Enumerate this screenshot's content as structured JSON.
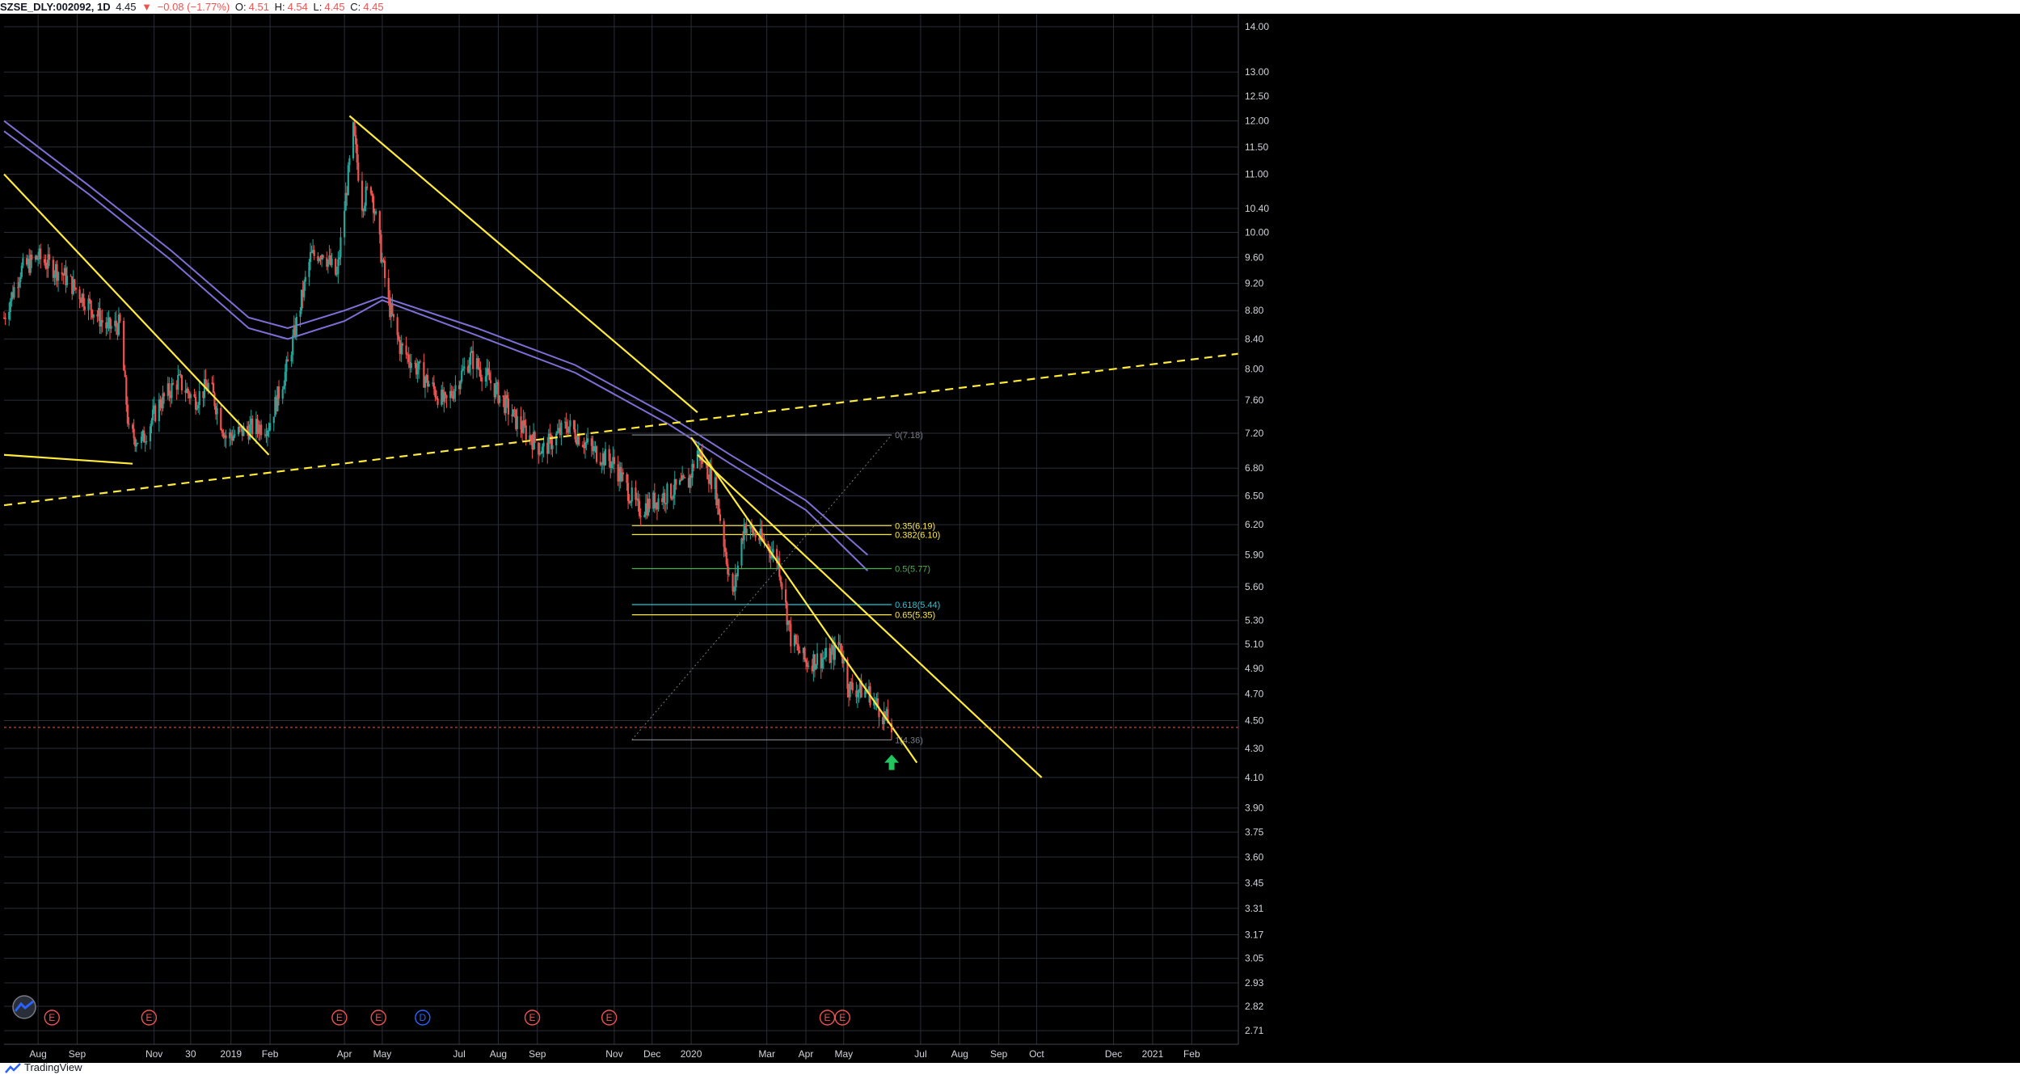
{
  "header": {
    "symbol": "SZSE_DLY:002092, 1D",
    "last": "4.45",
    "arrow": "▼",
    "change": "−0.08 (−1.77%)",
    "open_label": "O:",
    "open": "4.51",
    "high_label": "H:",
    "high": "4.54",
    "low_label": "L:",
    "low": "4.45",
    "close_label": "C:",
    "close": "4.45"
  },
  "footer": {
    "brand": "TradingView"
  },
  "colors": {
    "background": "#000000",
    "grid": "#2a2e39",
    "axis_text": "#d1d4dc",
    "candle_up": "#26a69a",
    "candle_down": "#ef5350",
    "trendline": "#ffeb3b",
    "moving_average": "#7e6fd6",
    "price_line": "#ff3b30",
    "arrow": "#22c55e",
    "earnings": "#ef5350",
    "dividend": "#2962ff"
  },
  "chart_data": {
    "type": "candlestick",
    "symbol": "SZSE_DLY:002092",
    "interval": "1D",
    "y_scale": "log",
    "ylim": [
      2.65,
      14.3
    ],
    "y_ticks": [
      "14.00",
      "13.00",
      "12.50",
      "12.00",
      "11.50",
      "11.00",
      "10.40",
      "10.00",
      "9.60",
      "9.20",
      "8.80",
      "8.40",
      "8.00",
      "7.60",
      "7.20",
      "6.80",
      "6.50",
      "6.20",
      "5.90",
      "5.60",
      "5.30",
      "5.10",
      "4.90",
      "4.70",
      "4.50",
      "4.30",
      "4.10",
      "3.90",
      "3.75",
      "3.60",
      "3.45",
      "3.31",
      "3.17",
      "3.05",
      "2.93",
      "2.82",
      "2.71"
    ],
    "x_range": [
      "2018-07-05",
      "2021-03-10"
    ],
    "x_ticks": [
      {
        "label": "Aug",
        "date": "2018-08-01"
      },
      {
        "label": "Sep",
        "date": "2018-09-01"
      },
      {
        "label": "Nov",
        "date": "2018-11-01"
      },
      {
        "label": "30",
        "date": "2018-11-30"
      },
      {
        "label": "2019",
        "date": "2019-01-01"
      },
      {
        "label": "Feb",
        "date": "2019-02-01"
      },
      {
        "label": "Apr",
        "date": "2019-04-01"
      },
      {
        "label": "May",
        "date": "2019-05-01"
      },
      {
        "label": "Jul",
        "date": "2019-07-01"
      },
      {
        "label": "Aug",
        "date": "2019-08-01"
      },
      {
        "label": "Sep",
        "date": "2019-09-01"
      },
      {
        "label": "Nov",
        "date": "2019-11-01"
      },
      {
        "label": "Dec",
        "date": "2019-12-01"
      },
      {
        "label": "2020",
        "date": "2020-01-01"
      },
      {
        "label": "Mar",
        "date": "2020-03-01"
      },
      {
        "label": "Apr",
        "date": "2020-04-01"
      },
      {
        "label": "May",
        "date": "2020-05-01"
      },
      {
        "label": "Jul",
        "date": "2020-07-01"
      },
      {
        "label": "Aug",
        "date": "2020-08-01"
      },
      {
        "label": "Sep",
        "date": "2020-09-01"
      },
      {
        "label": "Oct",
        "date": "2020-10-01"
      },
      {
        "label": "Dec",
        "date": "2020-12-01"
      },
      {
        "label": "2021",
        "date": "2021-01-01"
      },
      {
        "label": "Feb",
        "date": "2021-02-01"
      }
    ],
    "close_path": [
      {
        "date": "2018-07-05",
        "price": 8.7
      },
      {
        "date": "2018-07-18",
        "price": 9.4
      },
      {
        "date": "2018-08-01",
        "price": 9.6
      },
      {
        "date": "2018-08-20",
        "price": 9.35
      },
      {
        "date": "2018-09-10",
        "price": 8.9
      },
      {
        "date": "2018-09-25",
        "price": 8.55
      },
      {
        "date": "2018-10-05",
        "price": 8.6
      },
      {
        "date": "2018-10-12",
        "price": 7.2
      },
      {
        "date": "2018-10-22",
        "price": 7.1
      },
      {
        "date": "2018-11-05",
        "price": 7.55
      },
      {
        "date": "2018-11-20",
        "price": 7.85
      },
      {
        "date": "2018-12-03",
        "price": 7.6
      },
      {
        "date": "2018-12-15",
        "price": 7.8
      },
      {
        "date": "2018-12-28",
        "price": 7.15
      },
      {
        "date": "2019-01-15",
        "price": 7.25
      },
      {
        "date": "2019-01-31",
        "price": 7.3
      },
      {
        "date": "2019-02-15",
        "price": 8.05
      },
      {
        "date": "2019-03-05",
        "price": 9.6
      },
      {
        "date": "2019-03-15",
        "price": 9.7
      },
      {
        "date": "2019-03-26",
        "price": 9.3
      },
      {
        "date": "2019-04-01",
        "price": 10.4
      },
      {
        "date": "2019-04-08",
        "price": 11.8
      },
      {
        "date": "2019-04-15",
        "price": 10.5
      },
      {
        "date": "2019-04-22",
        "price": 10.8
      },
      {
        "date": "2019-05-06",
        "price": 8.9
      },
      {
        "date": "2019-05-15",
        "price": 8.3
      },
      {
        "date": "2019-06-05",
        "price": 7.85
      },
      {
        "date": "2019-06-20",
        "price": 7.55
      },
      {
        "date": "2019-07-10",
        "price": 8.15
      },
      {
        "date": "2019-07-25",
        "price": 7.85
      },
      {
        "date": "2019-08-15",
        "price": 7.35
      },
      {
        "date": "2019-09-05",
        "price": 7.0
      },
      {
        "date": "2019-09-25",
        "price": 7.3
      },
      {
        "date": "2019-10-15",
        "price": 7.0
      },
      {
        "date": "2019-11-01",
        "price": 6.85
      },
      {
        "date": "2019-11-20",
        "price": 6.35
      },
      {
        "date": "2019-12-10",
        "price": 6.5
      },
      {
        "date": "2019-12-30",
        "price": 6.65
      },
      {
        "date": "2020-01-06",
        "price": 7.0
      },
      {
        "date": "2020-01-20",
        "price": 6.6
      },
      {
        "date": "2020-02-03",
        "price": 5.5
      },
      {
        "date": "2020-02-12",
        "price": 6.2
      },
      {
        "date": "2020-03-01",
        "price": 6.0
      },
      {
        "date": "2020-03-10",
        "price": 5.85
      },
      {
        "date": "2020-03-20",
        "price": 5.15
      },
      {
        "date": "2020-04-01",
        "price": 4.95
      },
      {
        "date": "2020-04-20",
        "price": 5.0
      },
      {
        "date": "2020-04-28",
        "price": 5.1
      },
      {
        "date": "2020-05-05",
        "price": 4.75
      },
      {
        "date": "2020-05-20",
        "price": 4.72
      },
      {
        "date": "2020-06-03",
        "price": 4.52
      },
      {
        "date": "2020-06-08",
        "price": 4.45
      }
    ],
    "moving_averages": [
      {
        "points": [
          {
            "date": "2018-07-05",
            "price": 12.0
          },
          {
            "date": "2018-09-10",
            "price": 10.8
          },
          {
            "date": "2018-11-15",
            "price": 9.7
          },
          {
            "date": "2019-01-15",
            "price": 8.7
          },
          {
            "date": "2019-02-15",
            "price": 8.55
          },
          {
            "date": "2019-04-01",
            "price": 8.8
          },
          {
            "date": "2019-05-01",
            "price": 9.0
          },
          {
            "date": "2019-07-15",
            "price": 8.55
          },
          {
            "date": "2019-10-01",
            "price": 8.05
          },
          {
            "date": "2019-12-15",
            "price": 7.4
          },
          {
            "date": "2020-02-01",
            "price": 6.95
          },
          {
            "date": "2020-04-01",
            "price": 6.45
          },
          {
            "date": "2020-05-20",
            "price": 5.9
          }
        ]
      },
      {
        "points": [
          {
            "date": "2018-07-05",
            "price": 11.8
          },
          {
            "date": "2018-09-10",
            "price": 10.65
          },
          {
            "date": "2018-11-15",
            "price": 9.55
          },
          {
            "date": "2019-01-15",
            "price": 8.55
          },
          {
            "date": "2019-02-15",
            "price": 8.4
          },
          {
            "date": "2019-04-01",
            "price": 8.65
          },
          {
            "date": "2019-05-01",
            "price": 8.95
          },
          {
            "date": "2019-07-15",
            "price": 8.45
          },
          {
            "date": "2019-10-01",
            "price": 7.95
          },
          {
            "date": "2019-12-15",
            "price": 7.3
          },
          {
            "date": "2020-02-01",
            "price": 6.85
          },
          {
            "date": "2020-04-01",
            "price": 6.35
          },
          {
            "date": "2020-05-20",
            "price": 5.75
          }
        ]
      }
    ],
    "trendlines": [
      {
        "style": "solid",
        "from": {
          "date": "2018-07-05",
          "price": 11.0
        },
        "to": {
          "date": "2019-01-31",
          "price": 6.95
        }
      },
      {
        "style": "solid",
        "from": {
          "date": "2018-07-05",
          "price": 6.95
        },
        "to": {
          "date": "2018-10-15",
          "price": 6.85
        }
      },
      {
        "style": "solid",
        "from": {
          "date": "2019-04-05",
          "price": 12.1
        },
        "to": {
          "date": "2020-01-06",
          "price": 7.45
        }
      },
      {
        "style": "solid",
        "from": {
          "date": "2020-01-01",
          "price": 7.15
        },
        "to": {
          "date": "2020-06-28",
          "price": 4.2
        }
      },
      {
        "style": "solid",
        "from": {
          "date": "2020-01-06",
          "price": 6.95
        },
        "to": {
          "date": "2020-10-05",
          "price": 4.1
        }
      },
      {
        "style": "dashed",
        "from": {
          "date": "2018-07-05",
          "price": 6.4
        },
        "to": {
          "date": "2021-03-10",
          "price": 8.2
        }
      }
    ],
    "fibonacci": {
      "start_date": "2019-11-15",
      "end_date": "2020-06-08",
      "levels": [
        {
          "ratio": "0",
          "price": 7.18,
          "label": "0(7.18)"
        },
        {
          "ratio": "0.35",
          "price": 6.19,
          "label": "0.35(6.19)"
        },
        {
          "ratio": "0.382",
          "price": 6.1,
          "label": "0.382(6.10)"
        },
        {
          "ratio": "0.5",
          "price": 5.77,
          "label": "0.5(5.77)"
        },
        {
          "ratio": "0.618",
          "price": 5.44,
          "label": "0.618(5.44)"
        },
        {
          "ratio": "0.65",
          "price": 5.35,
          "label": "0.65(5.35)"
        },
        {
          "ratio": "1",
          "price": 4.36,
          "label": "1(4.36)"
        }
      ]
    },
    "current_price": {
      "value": 4.45,
      "label": "4.45"
    },
    "arrow_marker": {
      "date": "2020-06-08",
      "price": 4.2,
      "direction": "up"
    },
    "event_markers": [
      {
        "type": "E",
        "date": "2018-08-12"
      },
      {
        "type": "E",
        "date": "2018-10-28"
      },
      {
        "type": "E",
        "date": "2019-03-28"
      },
      {
        "type": "E",
        "date": "2019-04-28"
      },
      {
        "type": "D",
        "date": "2019-06-02"
      },
      {
        "type": "E",
        "date": "2019-08-28"
      },
      {
        "type": "E",
        "date": "2019-10-28"
      },
      {
        "type": "E",
        "date": "2020-04-18"
      },
      {
        "type": "E",
        "date": "2020-04-30"
      }
    ]
  }
}
